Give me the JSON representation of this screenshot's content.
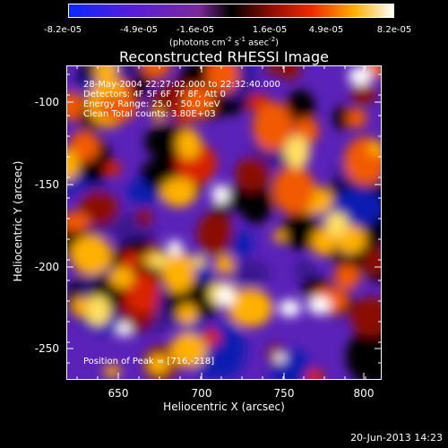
{
  "chart_data": {
    "type": "heatmap",
    "title": "Reconstructed RHESSI Image",
    "xlabel": "Heliocentric X (arcsec)",
    "ylabel": "Heliocentric Y (arcsec)",
    "x_ticks": [
      "650",
      "700",
      "750",
      "800"
    ],
    "y_ticks": [
      "-100",
      "-150",
      "-200",
      "-250"
    ],
    "colorbar": {
      "ticks": [
        "-8.2e-05",
        "-4.9e-05",
        "-1.6e-05",
        "1.6e-05",
        "4.9e-05",
        "8.2e-05"
      ],
      "units_main": "(photons cm",
      "units_exp1": "-2",
      "units_mid": " s",
      "units_exp2": "-1",
      "units_end": " asec",
      "units_exp3": "-2",
      "units_close": ")"
    },
    "annotations": {
      "line1": "28-May-2004 22:27:02.000 to 22:32:40.000",
      "line2": "Detectors: 4F 5F 6F 7F 8F, Att 0",
      "line3": "Energy Range: 25.0 - 50.0 keV",
      "line4": "Clean      Total counts: 3.80E+03",
      "peak": "Position of Peak = [716,-218]"
    }
  },
  "footer": {
    "timestamp": "20-Jun-2013 14:23"
  }
}
